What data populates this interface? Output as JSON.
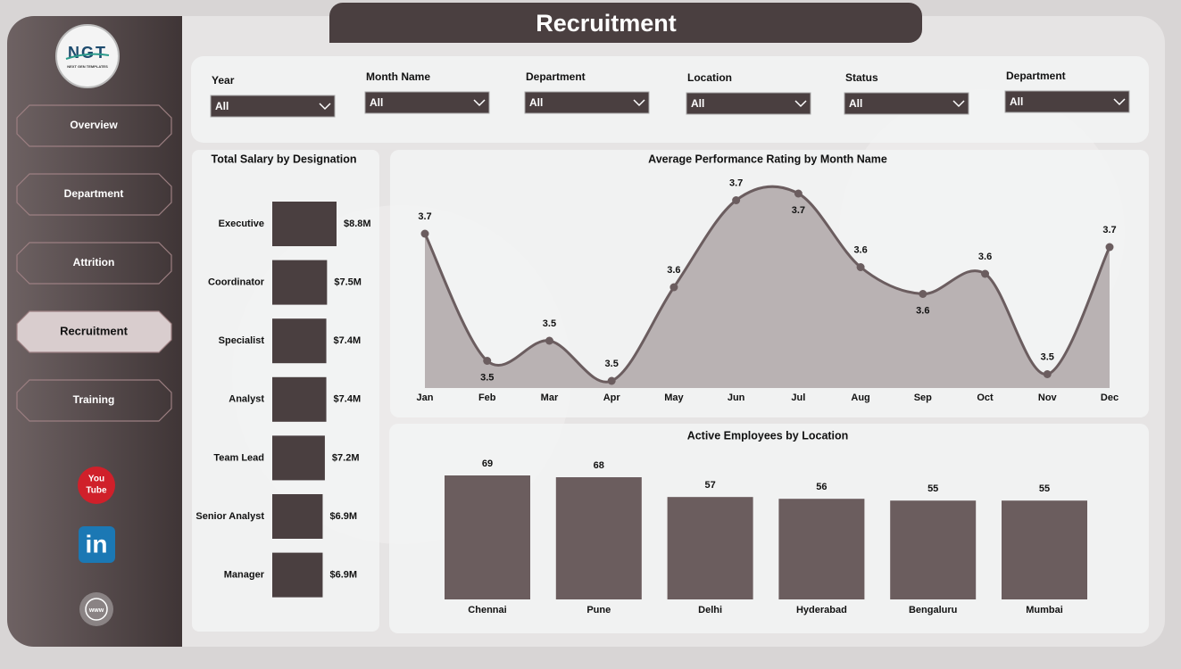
{
  "header": {
    "title": "Recruitment"
  },
  "logo": {
    "text": "NGT",
    "tagline": "NEXT GEN TEMPLATES"
  },
  "nav": [
    "Overview",
    "Department",
    "Attrition",
    "Recruitment",
    "Training"
  ],
  "active_nav": 3,
  "social": {
    "youtube_top": "You",
    "youtube_bottom": "Tube",
    "linkedin": "in",
    "web": "www"
  },
  "filters": [
    {
      "label": "Year",
      "value": "All"
    },
    {
      "label": "Month Name",
      "value": "All"
    },
    {
      "label": "Department",
      "value": "All"
    },
    {
      "label": "Location",
      "value": "All"
    },
    {
      "label": "Status",
      "value": "All"
    },
    {
      "label": "Department",
      "value": "All"
    }
  ],
  "chart_data": [
    {
      "type": "hbar",
      "title": "Total Salary by Designation",
      "categories": [
        "Executive",
        "Coordinator",
        "Specialist",
        "Analyst",
        "Team Lead",
        "Senior Analyst",
        "Manager"
      ],
      "values": [
        8.8,
        7.5,
        7.4,
        7.4,
        7.2,
        6.9,
        6.9
      ],
      "value_labels": [
        "$8.8M",
        "$7.5M",
        "$7.4M",
        "$7.4M",
        "$7.2M",
        "$6.9M",
        "$6.9M"
      ],
      "color": "#4a3f40"
    },
    {
      "type": "area",
      "title": "Average Performance Rating by Month Name",
      "categories": [
        "Jan",
        "Feb",
        "Mar",
        "Apr",
        "May",
        "Jun",
        "Jul",
        "Aug",
        "Sep",
        "Oct",
        "Nov",
        "Dec"
      ],
      "values": [
        3.68,
        3.49,
        3.52,
        3.46,
        3.6,
        3.73,
        3.74,
        3.63,
        3.59,
        3.62,
        3.47,
        3.66
      ],
      "value_labels": [
        "3.7",
        "3.5",
        "3.5",
        "3.5",
        "3.6",
        "3.7",
        "3.7",
        "3.6",
        "3.6",
        "3.6",
        "3.5",
        "3.7"
      ],
      "color": "#6b5d5f",
      "fill": "#b9b2b3"
    },
    {
      "type": "bar",
      "title": "Active Employees by Location",
      "categories": [
        "Chennai",
        "Pune",
        "Delhi",
        "Hyderabad",
        "Bengaluru",
        "Mumbai"
      ],
      "values": [
        69,
        68,
        57,
        56,
        55,
        55
      ],
      "color": "#6b5d5e"
    }
  ]
}
